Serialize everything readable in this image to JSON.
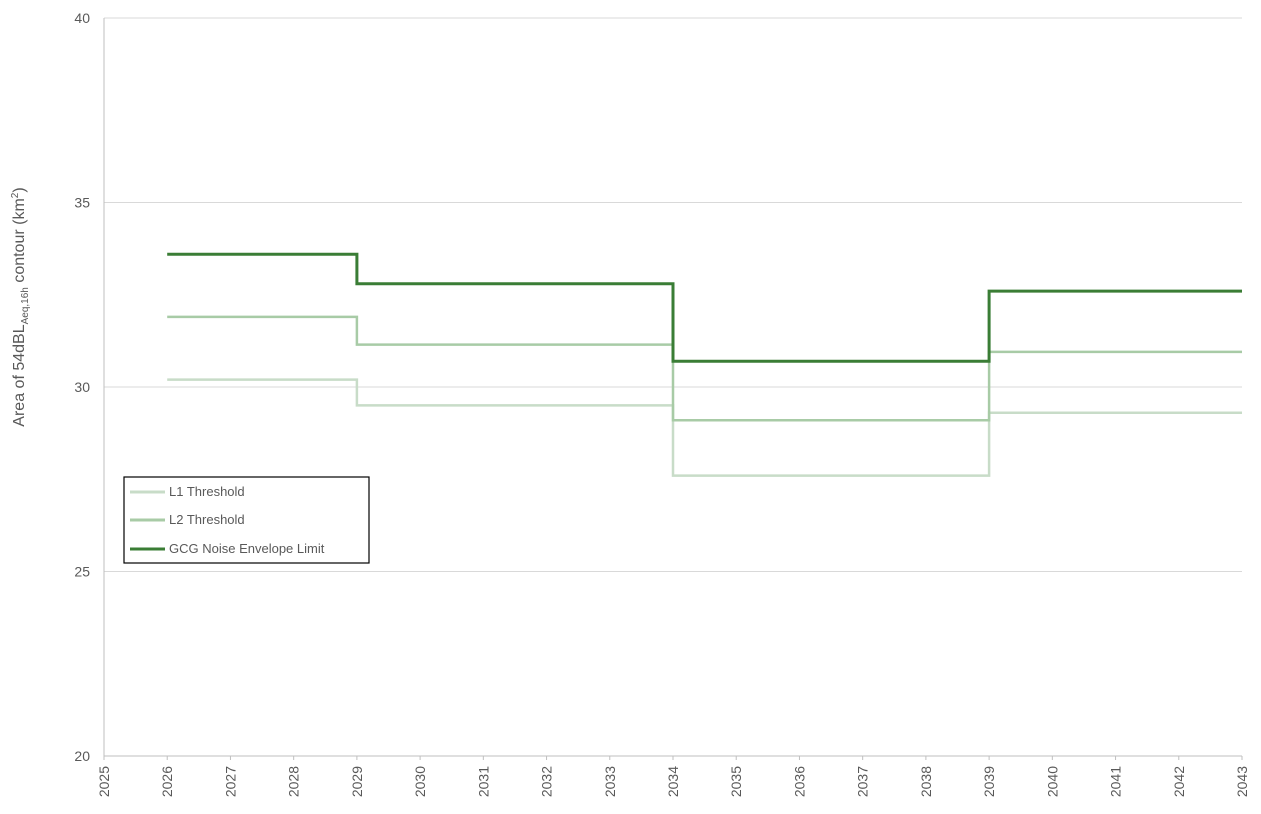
{
  "chart_data": {
    "type": "line",
    "step": true,
    "x_ticks": [
      "2025",
      "2026",
      "2027",
      "2028",
      "2029",
      "2030",
      "2031",
      "2032",
      "2033",
      "2034",
      "2035",
      "2036",
      "2037",
      "2038",
      "2039",
      "2040",
      "2041",
      "2042",
      "2043"
    ],
    "xlim": [
      2025,
      2043
    ],
    "ylim": [
      20,
      40
    ],
    "y_ticks": [
      "20",
      "25",
      "30",
      "35",
      "40"
    ],
    "ylabel": {
      "prefix": "Area of 54dBL",
      "subscript": "Aeq,16h",
      "middle": " contour (km",
      "superscript": "2",
      "suffix": ")"
    },
    "grid": "horizontal",
    "legend_position": "left-middle",
    "series": [
      {
        "name": "L1 Threshold",
        "color": "#c8dcc8",
        "x": [
          2026,
          2029,
          2029,
          2034,
          2034,
          2039,
          2039,
          2043
        ],
        "y": [
          30.2,
          30.2,
          29.5,
          29.5,
          27.6,
          27.6,
          29.3,
          29.3
        ]
      },
      {
        "name": "L2 Threshold",
        "color": "#a8cba6",
        "x": [
          2026,
          2029,
          2029,
          2034,
          2034,
          2039,
          2039,
          2043
        ],
        "y": [
          31.9,
          31.9,
          31.15,
          31.15,
          29.1,
          29.1,
          30.95,
          30.95
        ]
      },
      {
        "name": "GCG Noise Envelope Limit",
        "color": "#3a7d35",
        "x": [
          2026,
          2029,
          2029,
          2034,
          2034,
          2039,
          2039,
          2043
        ],
        "y": [
          33.6,
          33.6,
          32.8,
          32.8,
          30.7,
          30.7,
          32.6,
          32.6
        ]
      }
    ]
  }
}
